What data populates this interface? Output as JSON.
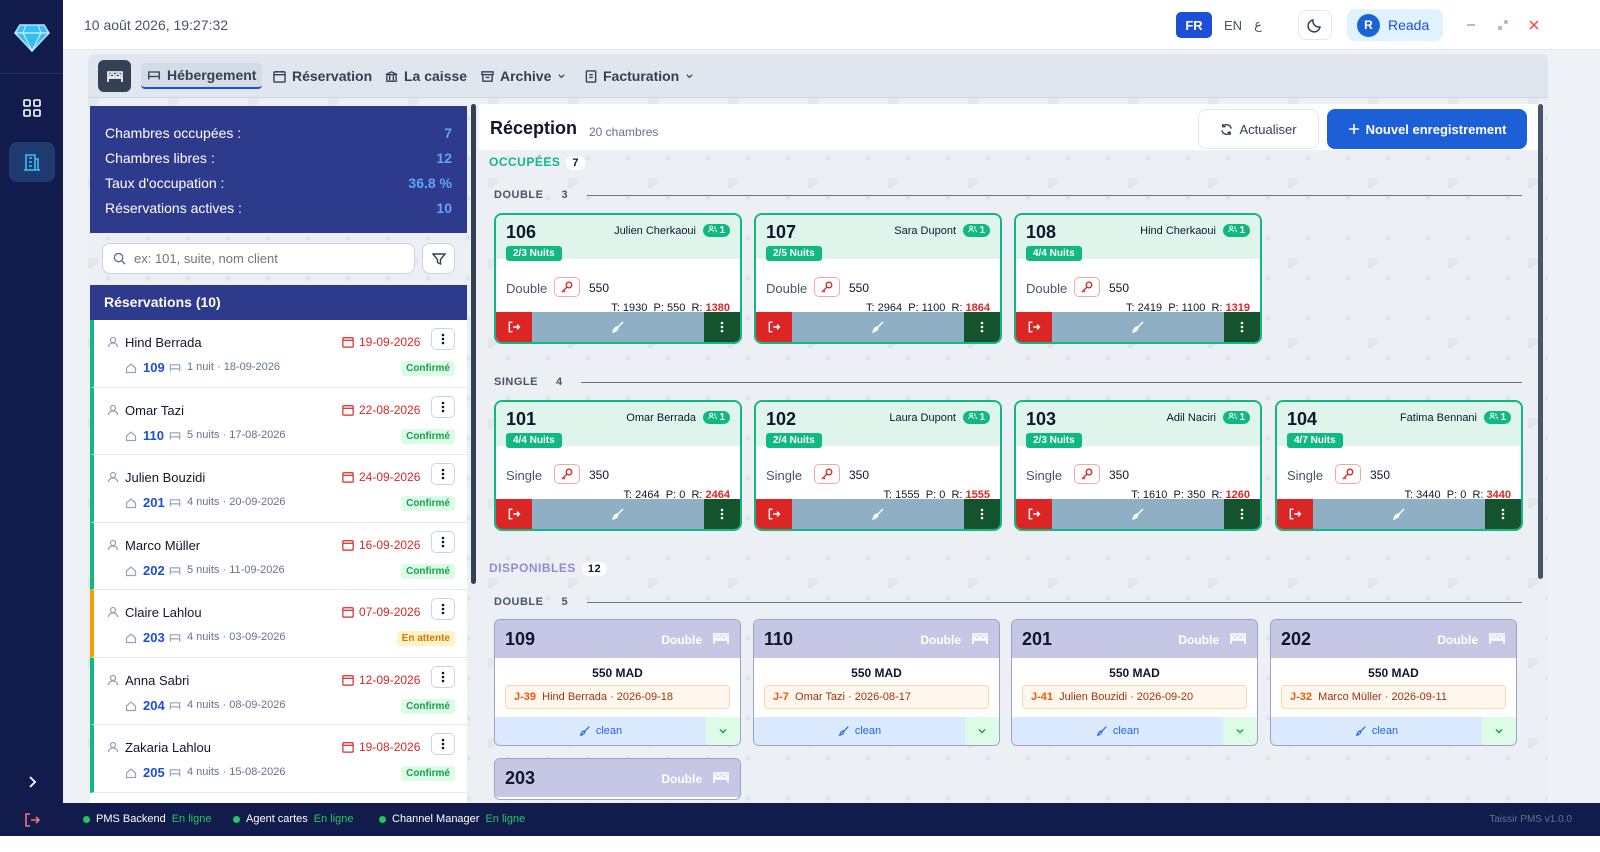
{
  "topbar": {
    "datetime": "10 août 2026, 19:27:32",
    "lang_fr": "FR",
    "lang_en": "EN",
    "lang_ar": "ع",
    "user_initial": "R",
    "user_name": "Reada"
  },
  "toolbar": {
    "hebergement": "Hébergement",
    "reservation": "Réservation",
    "caisse": "La caisse",
    "archive": "Archive",
    "facturation": "Facturation"
  },
  "stats": [
    {
      "label": "Chambres occupées :",
      "value": "7"
    },
    {
      "label": "Chambres libres :",
      "value": "12"
    },
    {
      "label": "Taux d'occupation :",
      "value": "36.8 %"
    },
    {
      "label": "Réservations actives :",
      "value": "10"
    }
  ],
  "search": {
    "placeholder": "ex: 101, suite, nom client"
  },
  "reservations": {
    "header": "Réservations (10)",
    "items": [
      {
        "name": "Hind Berrada",
        "date": "19-09-2026",
        "room": "109",
        "nights": "1 nuit",
        "start": "· 18-09-2026",
        "status": "Confirmé",
        "pending": false
      },
      {
        "name": "Omar Tazi",
        "date": "22-08-2026",
        "room": "110",
        "nights": "5 nuits",
        "start": "· 17-08-2026",
        "status": "Confirmé",
        "pending": false
      },
      {
        "name": "Julien Bouzidi",
        "date": "24-09-2026",
        "room": "201",
        "nights": "4 nuits",
        "start": "· 20-09-2026",
        "status": "Confirmé",
        "pending": false
      },
      {
        "name": "Marco Müller",
        "date": "16-09-2026",
        "room": "202",
        "nights": "5 nuits",
        "start": "· 11-09-2026",
        "status": "Confirmé",
        "pending": false
      },
      {
        "name": "Claire Lahlou",
        "date": "07-09-2026",
        "room": "203",
        "nights": "4 nuits",
        "start": "· 03-09-2026",
        "status": "En attente",
        "pending": true
      },
      {
        "name": "Anna Sabri",
        "date": "12-09-2026",
        "room": "204",
        "nights": "4 nuits",
        "start": "· 08-09-2026",
        "status": "Confirmé",
        "pending": false
      },
      {
        "name": "Zakaria Lahlou",
        "date": "19-08-2026",
        "room": "205",
        "nights": "4 nuits",
        "start": "· 15-08-2026",
        "status": "Confirmé",
        "pending": false
      }
    ]
  },
  "main": {
    "title": "Réception",
    "subtitle": "20 chambres",
    "refresh": "Actualiser",
    "new_registration": "Nouvel enregistrement"
  },
  "occupied": {
    "label": "OCCUPÉES",
    "count": "7",
    "groups": [
      {
        "name": "DOUBLE",
        "count": "3",
        "rooms": [
          {
            "num": "106",
            "guest": "Julien Cherkaoui",
            "guests": "1",
            "nights": "2/3 Nuits",
            "type": "Double",
            "price": "550",
            "t": "T: 1930",
            "p": "P: 550",
            "r_label": "R:",
            "r": "1380"
          },
          {
            "num": "107",
            "guest": "Sara Dupont",
            "guests": "1",
            "nights": "2/5 Nuits",
            "type": "Double",
            "price": "550",
            "t": "T: 2964",
            "p": "P: 1100",
            "r_label": "R:",
            "r": "1864"
          },
          {
            "num": "108",
            "guest": "Hind Cherkaoui",
            "guests": "1",
            "nights": "4/4 Nuits",
            "type": "Double",
            "price": "550",
            "t": "T: 2419",
            "p": "P: 1100",
            "r_label": "R:",
            "r": "1319"
          }
        ]
      },
      {
        "name": "SINGLE",
        "count": "4",
        "rooms": [
          {
            "num": "101",
            "guest": "Omar Berrada",
            "guests": "1",
            "nights": "4/4 Nuits",
            "type": "Single",
            "price": "350",
            "t": "T: 2464",
            "p": "P: 0",
            "r_label": "R:",
            "r": "2464"
          },
          {
            "num": "102",
            "guest": "Laura Dupont",
            "guests": "1",
            "nights": "2/4 Nuits",
            "type": "Single",
            "price": "350",
            "t": "T: 1555",
            "p": "P: 0",
            "r_label": "R:",
            "r": "1555"
          },
          {
            "num": "103",
            "guest": "Adil Naciri",
            "guests": "1",
            "nights": "2/3 Nuits",
            "type": "Single",
            "price": "350",
            "t": "T: 1610",
            "p": "P: 350",
            "r_label": "R:",
            "r": "1260"
          },
          {
            "num": "104",
            "guest": "Fatima Bennani",
            "guests": "1",
            "nights": "4/7 Nuits",
            "type": "Single",
            "price": "350",
            "t": "T: 3440",
            "p": "P: 0",
            "r_label": "R:",
            "r": "3440"
          }
        ]
      }
    ]
  },
  "available": {
    "label": "DISPONIBLES",
    "count": "12",
    "group": {
      "name": "DOUBLE",
      "count": "5"
    },
    "rooms": [
      {
        "num": "109",
        "type": "Double",
        "price": "550 MAD",
        "code": "J-39",
        "next": "Hind Berrada · 2026-09-18",
        "clean": "clean"
      },
      {
        "num": "110",
        "type": "Double",
        "price": "550 MAD",
        "code": "J-7",
        "next": "Omar Tazi · 2026-08-17",
        "clean": "clean"
      },
      {
        "num": "201",
        "type": "Double",
        "price": "550 MAD",
        "code": "J-41",
        "next": "Julien Bouzidi · 2026-09-20",
        "clean": "clean"
      },
      {
        "num": "202",
        "type": "Double",
        "price": "550 MAD",
        "code": "J-32",
        "next": "Marco Müller · 2026-09-11",
        "clean": "clean"
      },
      {
        "num": "203",
        "type": "Double"
      }
    ]
  },
  "statusbar": {
    "services": [
      {
        "name": "PMS Backend",
        "state": "En ligne"
      },
      {
        "name": "Agent cartes",
        "state": "En ligne"
      },
      {
        "name": "Channel Manager",
        "state": "En ligne"
      }
    ],
    "version": "Taissir PMS v1.0.0"
  }
}
